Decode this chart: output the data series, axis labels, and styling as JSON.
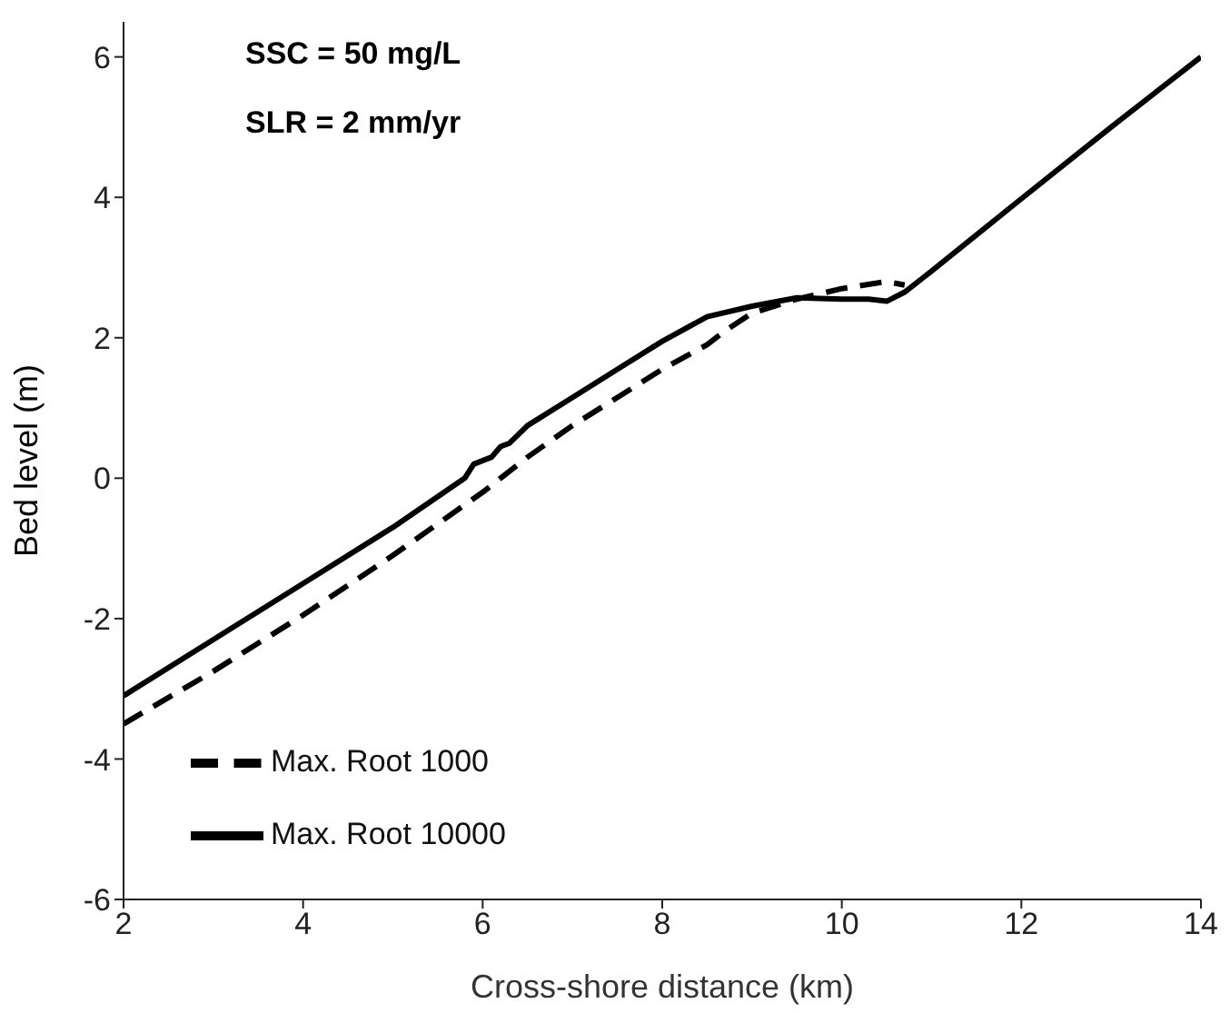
{
  "chart_data": {
    "type": "line",
    "xlabel": "Cross-shore distance (km)",
    "ylabel": "Bed level (m)",
    "annotations": [
      "SSC = 50 mg/L",
      "SLR = 2 mm/yr"
    ],
    "xlim": [
      2,
      14
    ],
    "xticks": [
      2,
      4,
      6,
      8,
      10,
      12,
      14
    ],
    "ylim": [
      -6,
      6.5
    ],
    "yticks": [
      -6,
      -4,
      -2,
      0,
      2,
      4,
      6
    ],
    "grid": false,
    "legend": "bottom left",
    "marker": "none",
    "series": [
      {
        "name": "Max. Root 1000",
        "color": "#000000",
        "line_style": "dashed",
        "x": [
          2,
          3,
          4,
          5,
          6,
          6.5,
          7,
          7.5,
          8,
          8.5,
          8.7,
          9,
          9.5,
          10,
          10.5,
          10.7
        ],
        "values": [
          -3.5,
          -2.75,
          -1.95,
          -1.1,
          -0.2,
          0.3,
          0.75,
          1.15,
          1.55,
          1.9,
          2.1,
          2.35,
          2.55,
          2.7,
          2.8,
          2.75
        ]
      },
      {
        "name": "Max. Root 10000",
        "color": "#000000",
        "line_style": "solid",
        "x": [
          2,
          3,
          4,
          5,
          5.8,
          5.9,
          6.1,
          6.2,
          6.3,
          6.5,
          7,
          7.5,
          8,
          8.5,
          9,
          9.5,
          10,
          10.3,
          10.5,
          10.7,
          11,
          12,
          13,
          14
        ],
        "values": [
          -3.1,
          -2.3,
          -1.5,
          -0.7,
          0,
          0.2,
          0.3,
          0.45,
          0.5,
          0.75,
          1.15,
          1.55,
          1.95,
          2.3,
          2.45,
          2.57,
          2.55,
          2.55,
          2.52,
          2.65,
          2.95,
          3.98,
          5.0,
          6.0
        ]
      }
    ]
  }
}
